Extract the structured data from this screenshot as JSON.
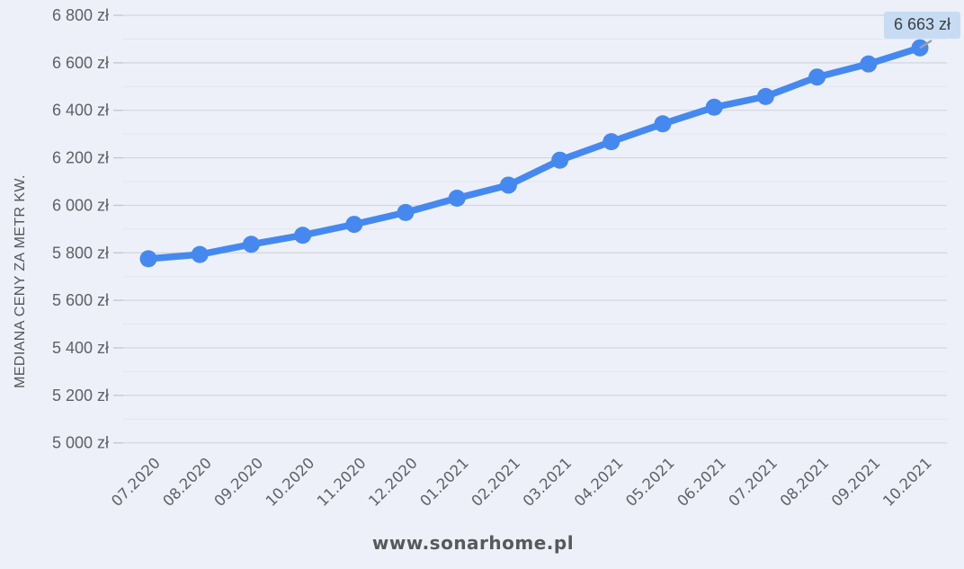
{
  "chart_data": {
    "type": "line",
    "title": "",
    "xlabel": "",
    "ylabel": "MEDIANA CENY ZA METR KW.",
    "series_name": "mediana ceny za metr kw.",
    "categories": [
      "07.2020",
      "08.2020",
      "09.2020",
      "10.2020",
      "11.2020",
      "12.2020",
      "01.2021",
      "02.2021",
      "03.2021",
      "04.2021",
      "05.2021",
      "06.2021",
      "07.2021",
      "08.2021",
      "09.2021",
      "10.2021"
    ],
    "values": [
      5775,
      5793,
      5836,
      5874,
      5920,
      5970,
      6030,
      6085,
      6190,
      6268,
      6343,
      6413,
      6458,
      6540,
      6595,
      6663
    ],
    "ylim": [
      5000,
      6800
    ],
    "y_tick_step": 200,
    "y_minor_step": 100,
    "y_tick_labels": [
      "5 000 zł",
      "5 200 zł",
      "5 400 zł",
      "5 600 zł",
      "5 800 zł",
      "6 000 zł",
      "6 200 zł",
      "6 400 zł",
      "6 600 zł",
      "6 800 zł"
    ],
    "grid": "horizontal, major with faint minor lines, no vertical grid",
    "legend": "none",
    "last_point_label": "6 663 zł",
    "colors": {
      "line": "#4589f0",
      "marker": "#4589f0",
      "background": "#edf0f8",
      "grid_major": "#d2d5dd",
      "grid_minor": "#e3e6ee",
      "axis_text": "#5f6068",
      "callout_bg": "#c7dcf3",
      "callout_text": "#3c4043",
      "connector": "#9aa0a6",
      "watermark": "#58595c"
    }
  },
  "footer": {
    "watermark": "www.sonarhome.pl"
  }
}
